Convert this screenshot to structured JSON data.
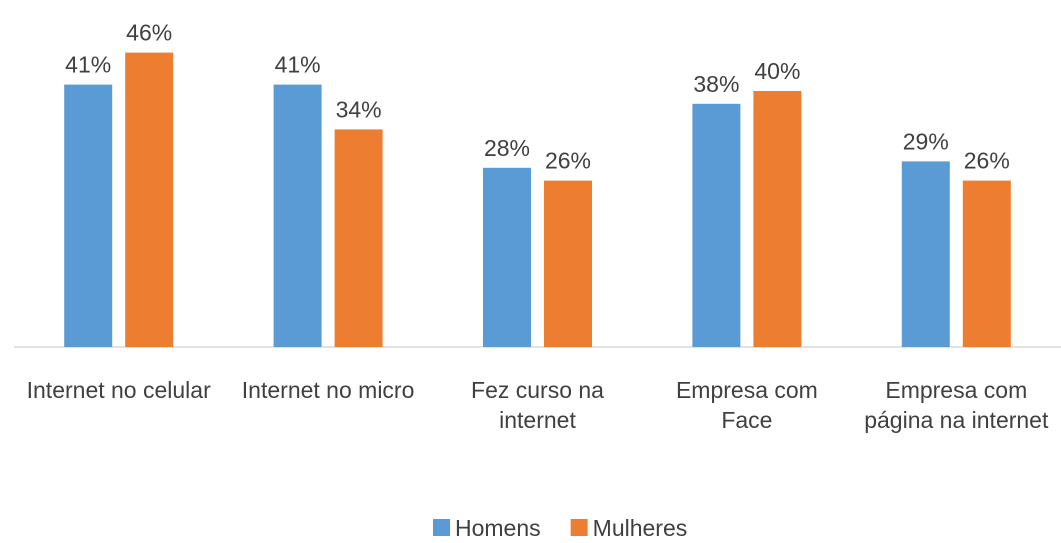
{
  "chart_data": {
    "type": "bar",
    "categories": [
      "Internet no celular",
      "Internet no micro",
      "Fez curso na internet",
      "Empresa com Face",
      "Empresa com página na internet"
    ],
    "series": [
      {
        "name": "Homens",
        "color": "#5b9bd5",
        "values": [
          41,
          41,
          28,
          38,
          29
        ],
        "value_labels": [
          "41%",
          "41%",
          "28%",
          "38%",
          "29%"
        ]
      },
      {
        "name": "Mulheres",
        "color": "#ed7d31",
        "values": [
          46,
          34,
          26,
          40,
          26
        ],
        "value_labels": [
          "46%",
          "34%",
          "26%",
          "40%",
          "26%"
        ]
      }
    ],
    "ylim": [
      0,
      50
    ],
    "legend": "bottom"
  }
}
